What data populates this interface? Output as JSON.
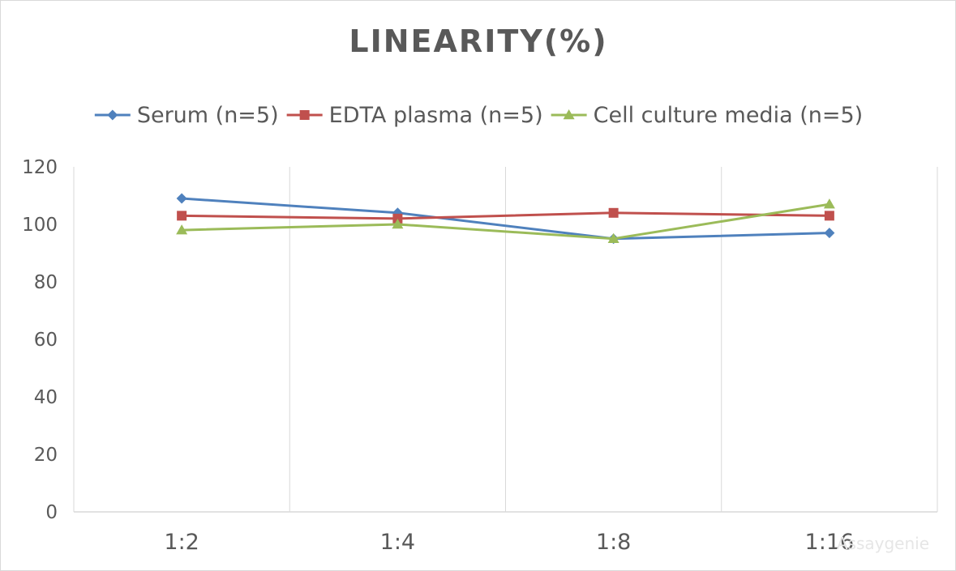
{
  "chart_data": {
    "type": "line",
    "title": "LINEARITY(%)",
    "xlabel": "",
    "ylabel": "",
    "categories": [
      "1:2",
      "1:4",
      "1:8",
      "1:16"
    ],
    "ylim": [
      0,
      120
    ],
    "yticks": [
      0,
      20,
      40,
      60,
      80,
      100,
      120
    ],
    "grid": "vertical",
    "legend_position": "top",
    "series": [
      {
        "name": "Serum (n=5)",
        "values": [
          109,
          104,
          95,
          97
        ],
        "color": "#4f81bd",
        "marker": "diamond"
      },
      {
        "name": "EDTA plasma (n=5)",
        "values": [
          103,
          102,
          104,
          103
        ],
        "color": "#c0504d",
        "marker": "square"
      },
      {
        "name": "Cell culture media (n=5)",
        "values": [
          98,
          100,
          95,
          107
        ],
        "color": "#9bbb59",
        "marker": "triangle"
      }
    ]
  },
  "watermark": "Assaygenie"
}
